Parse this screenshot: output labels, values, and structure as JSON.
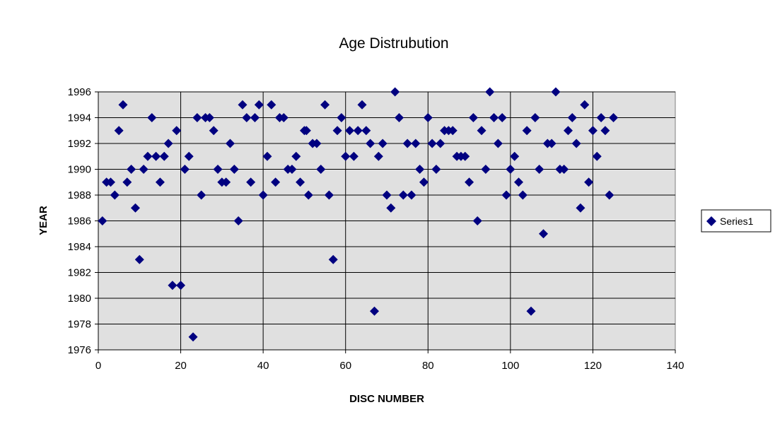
{
  "chart_data": {
    "type": "scatter",
    "title": "Age Distrubution",
    "xlabel": "DISC NUMBER",
    "ylabel": "YEAR",
    "xlim": [
      0,
      140
    ],
    "ylim": [
      1976,
      1996
    ],
    "x_ticks": [
      0,
      20,
      40,
      60,
      80,
      100,
      120,
      140
    ],
    "y_ticks": [
      1976,
      1978,
      1980,
      1982,
      1984,
      1986,
      1988,
      1990,
      1992,
      1994,
      1996
    ],
    "grid": true,
    "legend": {
      "entries": [
        "Series1"
      ],
      "placement": "right"
    },
    "marker": "diamond",
    "series": [
      {
        "name": "Series1",
        "color": "#000080",
        "points": [
          [
            1,
            1986
          ],
          [
            2,
            1989
          ],
          [
            3,
            1989
          ],
          [
            4,
            1988
          ],
          [
            5,
            1993
          ],
          [
            6,
            1995
          ],
          [
            7,
            1989
          ],
          [
            8,
            1990
          ],
          [
            9,
            1987
          ],
          [
            10,
            1983
          ],
          [
            11,
            1990
          ],
          [
            12,
            1991
          ],
          [
            13,
            1994
          ],
          [
            14,
            1991
          ],
          [
            15,
            1989
          ],
          [
            16,
            1991
          ],
          [
            17,
            1992
          ],
          [
            18,
            1981
          ],
          [
            19,
            1993
          ],
          [
            20,
            1981
          ],
          [
            21,
            1990
          ],
          [
            22,
            1991
          ],
          [
            23,
            1977
          ],
          [
            24,
            1994
          ],
          [
            25,
            1988
          ],
          [
            26,
            1994
          ],
          [
            27,
            1994
          ],
          [
            28,
            1993
          ],
          [
            29,
            1990
          ],
          [
            30,
            1989
          ],
          [
            31,
            1989
          ],
          [
            32,
            1992
          ],
          [
            33,
            1990
          ],
          [
            34,
            1986
          ],
          [
            35,
            1995
          ],
          [
            36,
            1994
          ],
          [
            37,
            1989
          ],
          [
            38,
            1994
          ],
          [
            39,
            1995
          ],
          [
            40,
            1988
          ],
          [
            41,
            1991
          ],
          [
            42,
            1995
          ],
          [
            43,
            1989
          ],
          [
            44,
            1994
          ],
          [
            45,
            1994
          ],
          [
            46,
            1990
          ],
          [
            47,
            1990
          ],
          [
            48,
            1991
          ],
          [
            49,
            1989
          ],
          [
            50,
            1993
          ],
          [
            50.5,
            1993
          ],
          [
            51,
            1988
          ],
          [
            52,
            1992
          ],
          [
            53,
            1992
          ],
          [
            54,
            1990
          ],
          [
            55,
            1995
          ],
          [
            56,
            1988
          ],
          [
            57,
            1983
          ],
          [
            58,
            1993
          ],
          [
            59,
            1994
          ],
          [
            60,
            1991
          ],
          [
            61,
            1993
          ],
          [
            62,
            1991
          ],
          [
            63,
            1993
          ],
          [
            64,
            1995
          ],
          [
            65,
            1993
          ],
          [
            66,
            1992
          ],
          [
            67,
            1979
          ],
          [
            68,
            1991
          ],
          [
            69,
            1992
          ],
          [
            70,
            1988
          ],
          [
            71,
            1987
          ],
          [
            72,
            1996
          ],
          [
            73,
            1994
          ],
          [
            74,
            1988
          ],
          [
            75,
            1992
          ],
          [
            76,
            1988
          ],
          [
            77,
            1992
          ],
          [
            78,
            1990
          ],
          [
            79,
            1989
          ],
          [
            80,
            1994
          ],
          [
            81,
            1992
          ],
          [
            82,
            1990
          ],
          [
            83,
            1992
          ],
          [
            84,
            1993
          ],
          [
            85,
            1993
          ],
          [
            86,
            1993
          ],
          [
            87,
            1991
          ],
          [
            88,
            1991
          ],
          [
            89,
            1991
          ],
          [
            90,
            1989
          ],
          [
            91,
            1994
          ],
          [
            92,
            1986
          ],
          [
            93,
            1993
          ],
          [
            94,
            1990
          ],
          [
            95,
            1996
          ],
          [
            96,
            1994
          ],
          [
            97,
            1992
          ],
          [
            98,
            1994
          ],
          [
            99,
            1988
          ],
          [
            100,
            1990
          ],
          [
            101,
            1991
          ],
          [
            102,
            1989
          ],
          [
            103,
            1988
          ],
          [
            104,
            1993
          ],
          [
            105,
            1979
          ],
          [
            106,
            1994
          ],
          [
            107,
            1990
          ],
          [
            108,
            1985
          ],
          [
            109,
            1992
          ],
          [
            110,
            1992
          ],
          [
            111,
            1996
          ],
          [
            112,
            1990
          ],
          [
            113,
            1990
          ],
          [
            114,
            1993
          ],
          [
            115,
            1994
          ],
          [
            116,
            1992
          ],
          [
            117,
            1987
          ],
          [
            118,
            1995
          ],
          [
            119,
            1989
          ],
          [
            120,
            1993
          ],
          [
            121,
            1991
          ],
          [
            122,
            1994
          ],
          [
            123,
            1993
          ],
          [
            124,
            1988
          ],
          [
            125,
            1994
          ]
        ]
      }
    ]
  },
  "colors": {
    "plot_background": "#e0e0e0",
    "gridline": "#000000",
    "marker": "#000080"
  }
}
